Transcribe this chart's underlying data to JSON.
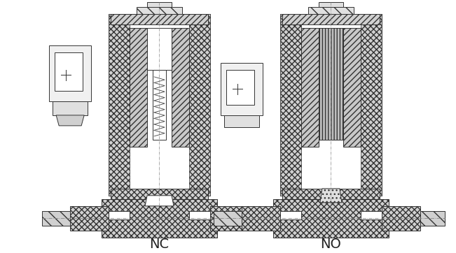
{
  "bg_color": "#ffffff",
  "line_color": "#333333",
  "hatch_color": "#555555",
  "label_nc": "NC",
  "label_no": "NO",
  "label_fontsize": 14,
  "fig_width": 6.51,
  "fig_height": 3.62,
  "dpi": 100
}
